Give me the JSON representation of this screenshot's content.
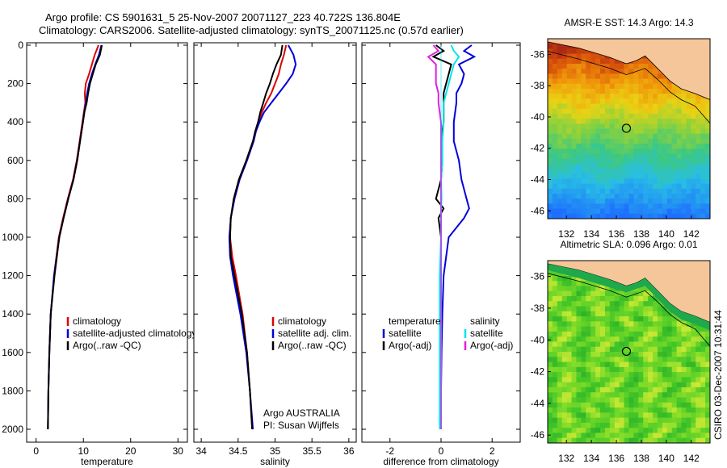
{
  "header": {
    "line1": "Argo profile: CS 5901631_5 25-Nov-2007 20071127_223 40.722S 136.804E",
    "line2": "Climatology: CARS2006. Satellite-adjusted climatology: synTS_20071125.nc (0.57d earlier)"
  },
  "side_stamp": "CSIRO 03-Dec-2007 10:31:44",
  "colors": {
    "red": "#e00000",
    "blue": "#0000dd",
    "black": "#000000",
    "cyan": "#00e5ee",
    "magenta": "#e020e0",
    "land": "#f5c69a"
  },
  "chart_data": [
    {
      "type": "line",
      "xlabel": "temperature",
      "ylabel": "",
      "xlim": [
        -2,
        32
      ],
      "ylim": [
        2050,
        0
      ],
      "xticks": [
        0,
        10,
        20,
        30
      ],
      "yticks": [
        0,
        200,
        400,
        600,
        800,
        1000,
        1200,
        1400,
        1600,
        1800,
        2000
      ],
      "legend": {
        "position": "lower-right",
        "entries": [
          "climatology",
          "satellite-adjusted climatology",
          "Argo(..raw -QC)"
        ]
      },
      "depth": [
        0,
        50,
        100,
        150,
        200,
        250,
        300,
        350,
        400,
        450,
        500,
        600,
        700,
        800,
        900,
        1000,
        1200,
        1400,
        1600,
        1800,
        2000
      ],
      "series": [
        {
          "name": "climatology",
          "color": "red",
          "values": [
            13.2,
            12.4,
            11.8,
            11.2,
            10.5,
            10.3,
            10.4,
            10.1,
            9.8,
            9.5,
            9.2,
            8.6,
            7.8,
            6.7,
            5.7,
            4.8,
            3.8,
            3.1,
            2.8,
            2.6,
            2.5
          ]
        },
        {
          "name": "satellite-adjusted climatology",
          "color": "blue",
          "values": [
            13.8,
            13.3,
            12.5,
            11.8,
            11.2,
            10.8,
            10.5,
            10.2,
            9.9,
            9.6,
            9.3,
            8.7,
            7.9,
            6.8,
            5.8,
            4.9,
            3.8,
            3.1,
            2.8,
            2.6,
            2.5
          ]
        },
        {
          "name": "Argo(..raw -QC)",
          "color": "black",
          "values": [
            13.9,
            13.5,
            12.6,
            12.0,
            11.4,
            11.0,
            10.7,
            10.2,
            9.9,
            9.6,
            9.3,
            8.7,
            7.9,
            6.8,
            5.8,
            4.9,
            3.9,
            3.1,
            2.8,
            2.6,
            2.5
          ]
        }
      ]
    },
    {
      "type": "line",
      "xlabel": "salinity",
      "xlim": [
        33.9,
        36.1
      ],
      "ylim": [
        2050,
        0
      ],
      "xticks": [
        34,
        34.5,
        35,
        35.5,
        36
      ],
      "yticks": [
        0,
        200,
        400,
        600,
        800,
        1000,
        1200,
        1400,
        1600,
        1800,
        2000
      ],
      "legend": {
        "position": "lower-right",
        "entries": [
          "climatology",
          "satellite adj. clim.",
          "Argo(..raw -QC)"
        ]
      },
      "annotations": [
        "Argo AUSTRALIA",
        "PI: Susan Wijffels"
      ],
      "depth": [
        0,
        50,
        100,
        150,
        200,
        250,
        300,
        350,
        400,
        450,
        500,
        600,
        700,
        800,
        900,
        1000,
        1100,
        1200,
        1400,
        1600,
        1800,
        2000
      ],
      "series": [
        {
          "name": "climatology",
          "color": "red",
          "values": [
            35.15,
            35.12,
            35.08,
            35.05,
            35.0,
            34.95,
            34.88,
            34.82,
            34.78,
            34.74,
            34.71,
            34.62,
            34.52,
            34.45,
            34.4,
            34.39,
            34.42,
            34.47,
            34.56,
            34.62,
            34.66,
            34.69
          ]
        },
        {
          "name": "satellite adj. clim.",
          "color": "blue",
          "values": [
            35.18,
            35.25,
            35.28,
            35.24,
            35.15,
            35.05,
            34.95,
            34.85,
            34.79,
            34.74,
            34.71,
            34.62,
            34.52,
            34.45,
            34.4,
            34.38,
            34.39,
            34.43,
            34.53,
            34.61,
            34.66,
            34.7
          ]
        },
        {
          "name": "Argo(..raw -QC)",
          "color": "black",
          "values": [
            35.1,
            35.08,
            35.02,
            34.97,
            34.93,
            34.88,
            34.84,
            34.8,
            34.77,
            34.73,
            34.7,
            34.61,
            34.51,
            34.44,
            34.4,
            34.39,
            34.4,
            34.45,
            34.55,
            34.62,
            34.66,
            34.69
          ]
        }
      ]
    },
    {
      "type": "line",
      "xlabel": "difference from climatology",
      "xlim": [
        -3.1,
        3.1
      ],
      "ylim": [
        2050,
        0
      ],
      "xticks": [
        -2,
        0,
        2
      ],
      "yticks": [
        0,
        200,
        400,
        600,
        800,
        1000,
        1200,
        1400,
        1600,
        1800,
        2000
      ],
      "legend": {
        "position": "lower-center",
        "entries": [
          "temperature",
          "satellite",
          "Argo(-adj)",
          "salinity",
          "satellite",
          "Argo(-adj)"
        ]
      },
      "depth": [
        0,
        30,
        60,
        100,
        150,
        200,
        250,
        300,
        400,
        500,
        600,
        700,
        800,
        850,
        900,
        1000,
        1200,
        1400,
        1600,
        1800,
        2000
      ],
      "series": [
        {
          "name": "temperature satellite",
          "color": "blue",
          "values": [
            1.2,
            0.9,
            1.3,
            0.7,
            0.9,
            0.8,
            0.6,
            0.6,
            0.5,
            0.5,
            0.7,
            0.8,
            1.0,
            1.1,
            0.9,
            0.3,
            0.1,
            0.05,
            0.02,
            0.0,
            0.0
          ]
        },
        {
          "name": "temperature Argo(-adj)",
          "color": "black",
          "values": [
            -0.2,
            0.1,
            -0.3,
            0.4,
            0.3,
            0.2,
            0.1,
            0.1,
            0.1,
            0.0,
            0.05,
            0.0,
            -0.2,
            0.1,
            -0.1,
            0.0,
            0.0,
            0.0,
            0.0,
            0.0,
            0.0
          ]
        },
        {
          "name": "salinity satellite",
          "color": "cyan",
          "values": [
            0.4,
            0.5,
            0.7,
            0.5,
            0.4,
            0.3,
            0.2,
            0.1,
            0.1,
            0.05,
            0.05,
            0.0,
            0.02,
            0.0,
            0.0,
            0.0,
            -0.05,
            -0.05,
            -0.05,
            -0.05,
            -0.05
          ]
        },
        {
          "name": "salinity Argo(-adj)",
          "color": "magenta",
          "values": [
            -0.3,
            -0.1,
            -0.5,
            -0.2,
            -0.2,
            -0.2,
            -0.1,
            -0.1,
            0.0,
            0.0,
            0.0,
            0.0,
            0.0,
            0.0,
            0.0,
            0.0,
            0.0,
            0.0,
            0.0,
            0.0,
            0.0
          ]
        }
      ]
    },
    {
      "type": "heatmap",
      "title": "AMSR-E SST: 14.3 Argo: 14.3",
      "xlim": [
        130.5,
        143.5
      ],
      "ylim": [
        -46.5,
        -35
      ],
      "xticks": [
        132,
        134,
        136,
        138,
        140,
        142
      ],
      "yticks": [
        -36,
        -38,
        -40,
        -42,
        -44,
        -46
      ],
      "marker": {
        "lon": 136.804,
        "lat": -40.722
      }
    },
    {
      "type": "heatmap",
      "title": "Altimetric SLA: 0.096 Argo: 0.01",
      "xlim": [
        130.5,
        143.5
      ],
      "ylim": [
        -46.5,
        -35
      ],
      "xticks": [
        132,
        134,
        136,
        138,
        140,
        142
      ],
      "yticks": [
        -36,
        -38,
        -40,
        -42,
        -44,
        -46
      ],
      "marker": {
        "lon": 136.804,
        "lat": -40.722
      }
    }
  ]
}
